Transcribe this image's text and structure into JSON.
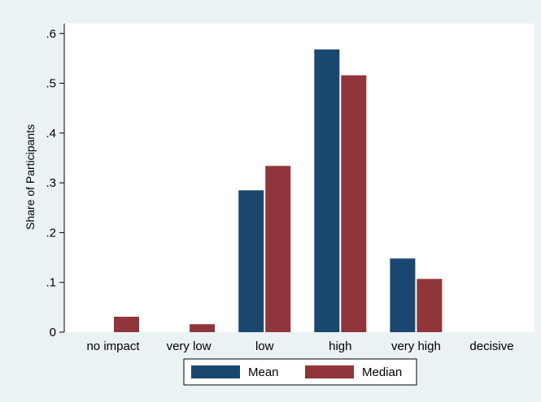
{
  "chart_data": {
    "type": "bar",
    "categories": [
      "no impact",
      "very low",
      "low",
      "high",
      "very high",
      "decisive"
    ],
    "series": [
      {
        "name": "Mean",
        "color": "#1a476f",
        "values": [
          0,
          0,
          0.285,
          0.568,
          0.148,
          0
        ]
      },
      {
        "name": "Median",
        "color": "#90353b",
        "values": [
          0.031,
          0.016,
          0.334,
          0.516,
          0.107,
          0
        ]
      }
    ],
    "ylabel": "Share of Participants",
    "xlabel": "",
    "ylim": [
      0,
      0.62
    ],
    "yticks": [
      {
        "value": 0,
        "label": "0"
      },
      {
        "value": 0.1,
        "label": ".1"
      },
      {
        "value": 0.2,
        "label": ".2"
      },
      {
        "value": 0.3,
        "label": ".3"
      },
      {
        "value": 0.4,
        "label": ".4"
      },
      {
        "value": 0.5,
        "label": ".5"
      },
      {
        "value": 0.6,
        "label": ".6"
      }
    ],
    "legend": {
      "position": "bottom"
    },
    "grid": false,
    "colors": {
      "page_background": "#eaf2f3",
      "plot_background": "#ffffff"
    }
  }
}
